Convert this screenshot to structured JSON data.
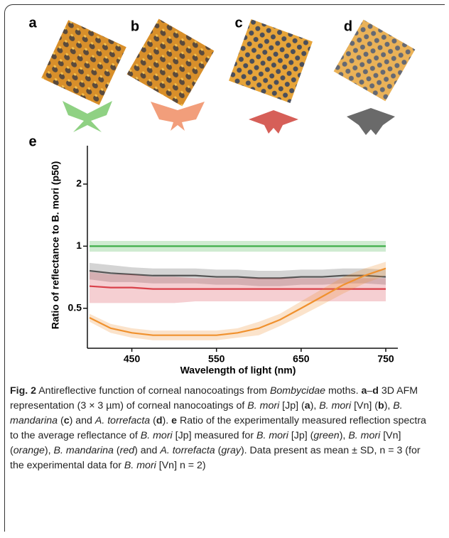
{
  "panel_labels": [
    "a",
    "b",
    "c",
    "d",
    "e"
  ],
  "chart_data": {
    "type": "line",
    "ylabel": "Ratio of reflectance to B. mori (p50)",
    "xlabel": "Wavelength of light (nm)",
    "x": [
      400,
      425,
      450,
      475,
      500,
      525,
      550,
      575,
      600,
      625,
      650,
      675,
      700,
      725,
      750
    ],
    "xlim": [
      400,
      750
    ],
    "xticks": [
      450,
      550,
      650,
      750
    ],
    "ylim": [
      0.32,
      3.07
    ],
    "yticks": [
      0.5,
      1,
      2
    ],
    "yscale": "log",
    "series": [
      {
        "color": "#3fae49",
        "values": [
          1,
          1,
          1,
          1,
          1,
          1,
          1,
          1,
          1,
          1,
          1,
          1,
          1,
          1,
          1
        ],
        "errors": [
          0.06,
          0.06,
          0.06,
          0.06,
          0.06,
          0.06,
          0.06,
          0.06,
          0.06,
          0.06,
          0.06,
          0.06,
          0.06,
          0.06,
          0.06
        ]
      },
      {
        "color": "#555555",
        "values": [
          0.76,
          0.74,
          0.73,
          0.72,
          0.72,
          0.72,
          0.71,
          0.71,
          0.7,
          0.7,
          0.71,
          0.71,
          0.72,
          0.72,
          0.71
        ],
        "errors": [
          0.07,
          0.07,
          0.06,
          0.06,
          0.06,
          0.06,
          0.06,
          0.06,
          0.06,
          0.06,
          0.06,
          0.06,
          0.06,
          0.06,
          0.06
        ]
      },
      {
        "color": "#d9414a",
        "values": [
          0.64,
          0.63,
          0.63,
          0.62,
          0.62,
          0.62,
          0.62,
          0.62,
          0.62,
          0.62,
          0.62,
          0.62,
          0.62,
          0.62,
          0.62
        ],
        "errors": [
          0.11,
          0.1,
          0.1,
          0.09,
          0.09,
          0.08,
          0.08,
          0.08,
          0.08,
          0.08,
          0.08,
          0.08,
          0.08,
          0.08,
          0.08
        ]
      },
      {
        "color": "#f0912e",
        "values": [
          0.45,
          0.4,
          0.38,
          0.37,
          0.37,
          0.37,
          0.37,
          0.38,
          0.4,
          0.44,
          0.5,
          0.57,
          0.65,
          0.72,
          0.78
        ],
        "errors": [
          0.02,
          0.02,
          0.02,
          0.02,
          0.02,
          0.02,
          0.02,
          0.02,
          0.03,
          0.03,
          0.04,
          0.05,
          0.06,
          0.06,
          0.06
        ]
      }
    ]
  },
  "caption": [
    {
      "text": "Fig. 2",
      "style": "b"
    },
    {
      "text": "  Antireflective function of corneal nanocoatings from "
    },
    {
      "text": "Bombycidae",
      "style": "i"
    },
    {
      "text": " moths. "
    },
    {
      "text": "a",
      "style": "b"
    },
    {
      "text": "–"
    },
    {
      "text": "d",
      "style": "b"
    },
    {
      "text": " 3D AFM representation (3 × 3 µm) of corneal nanocoatings of "
    },
    {
      "text": "B. mori",
      "style": "i"
    },
    {
      "text": " [Jp] ("
    },
    {
      "text": "a",
      "style": "b"
    },
    {
      "text": "), "
    },
    {
      "text": "B. mori",
      "style": "i"
    },
    {
      "text": " [Vn] ("
    },
    {
      "text": "b",
      "style": "b"
    },
    {
      "text": "), "
    },
    {
      "text": "B. mandarina",
      "style": "i"
    },
    {
      "text": " ("
    },
    {
      "text": "c",
      "style": "b"
    },
    {
      "text": ") and "
    },
    {
      "text": "A. torrefacta",
      "style": "i"
    },
    {
      "text": " ("
    },
    {
      "text": "d",
      "style": "b"
    },
    {
      "text": "). "
    },
    {
      "text": "e",
      "style": "b"
    },
    {
      "text": " Ratio of the experimentally measured reflection spectra to the average reflectance of "
    },
    {
      "text": "B. mori",
      "style": "i"
    },
    {
      "text": " [Jp] measured for "
    },
    {
      "text": "B. mori",
      "style": "i"
    },
    {
      "text": " [Jp] ("
    },
    {
      "text": "green",
      "style": "i"
    },
    {
      "text": "), "
    },
    {
      "text": "B. mori",
      "style": "i"
    },
    {
      "text": " [Vn] ("
    },
    {
      "text": "orange",
      "style": "i"
    },
    {
      "text": "), "
    },
    {
      "text": "B. mandarina",
      "style": "i"
    },
    {
      "text": " ("
    },
    {
      "text": "red",
      "style": "i"
    },
    {
      "text": ") and "
    },
    {
      "text": "A. torrefacta",
      "style": "i"
    },
    {
      "text": " ("
    },
    {
      "text": "gray",
      "style": "i"
    },
    {
      "text": "). Data present as mean ± SD, n = 3 (for the experimental data for "
    },
    {
      "text": "B. mori",
      "style": "i"
    },
    {
      "text": " [Vn] n = 2)"
    }
  ]
}
